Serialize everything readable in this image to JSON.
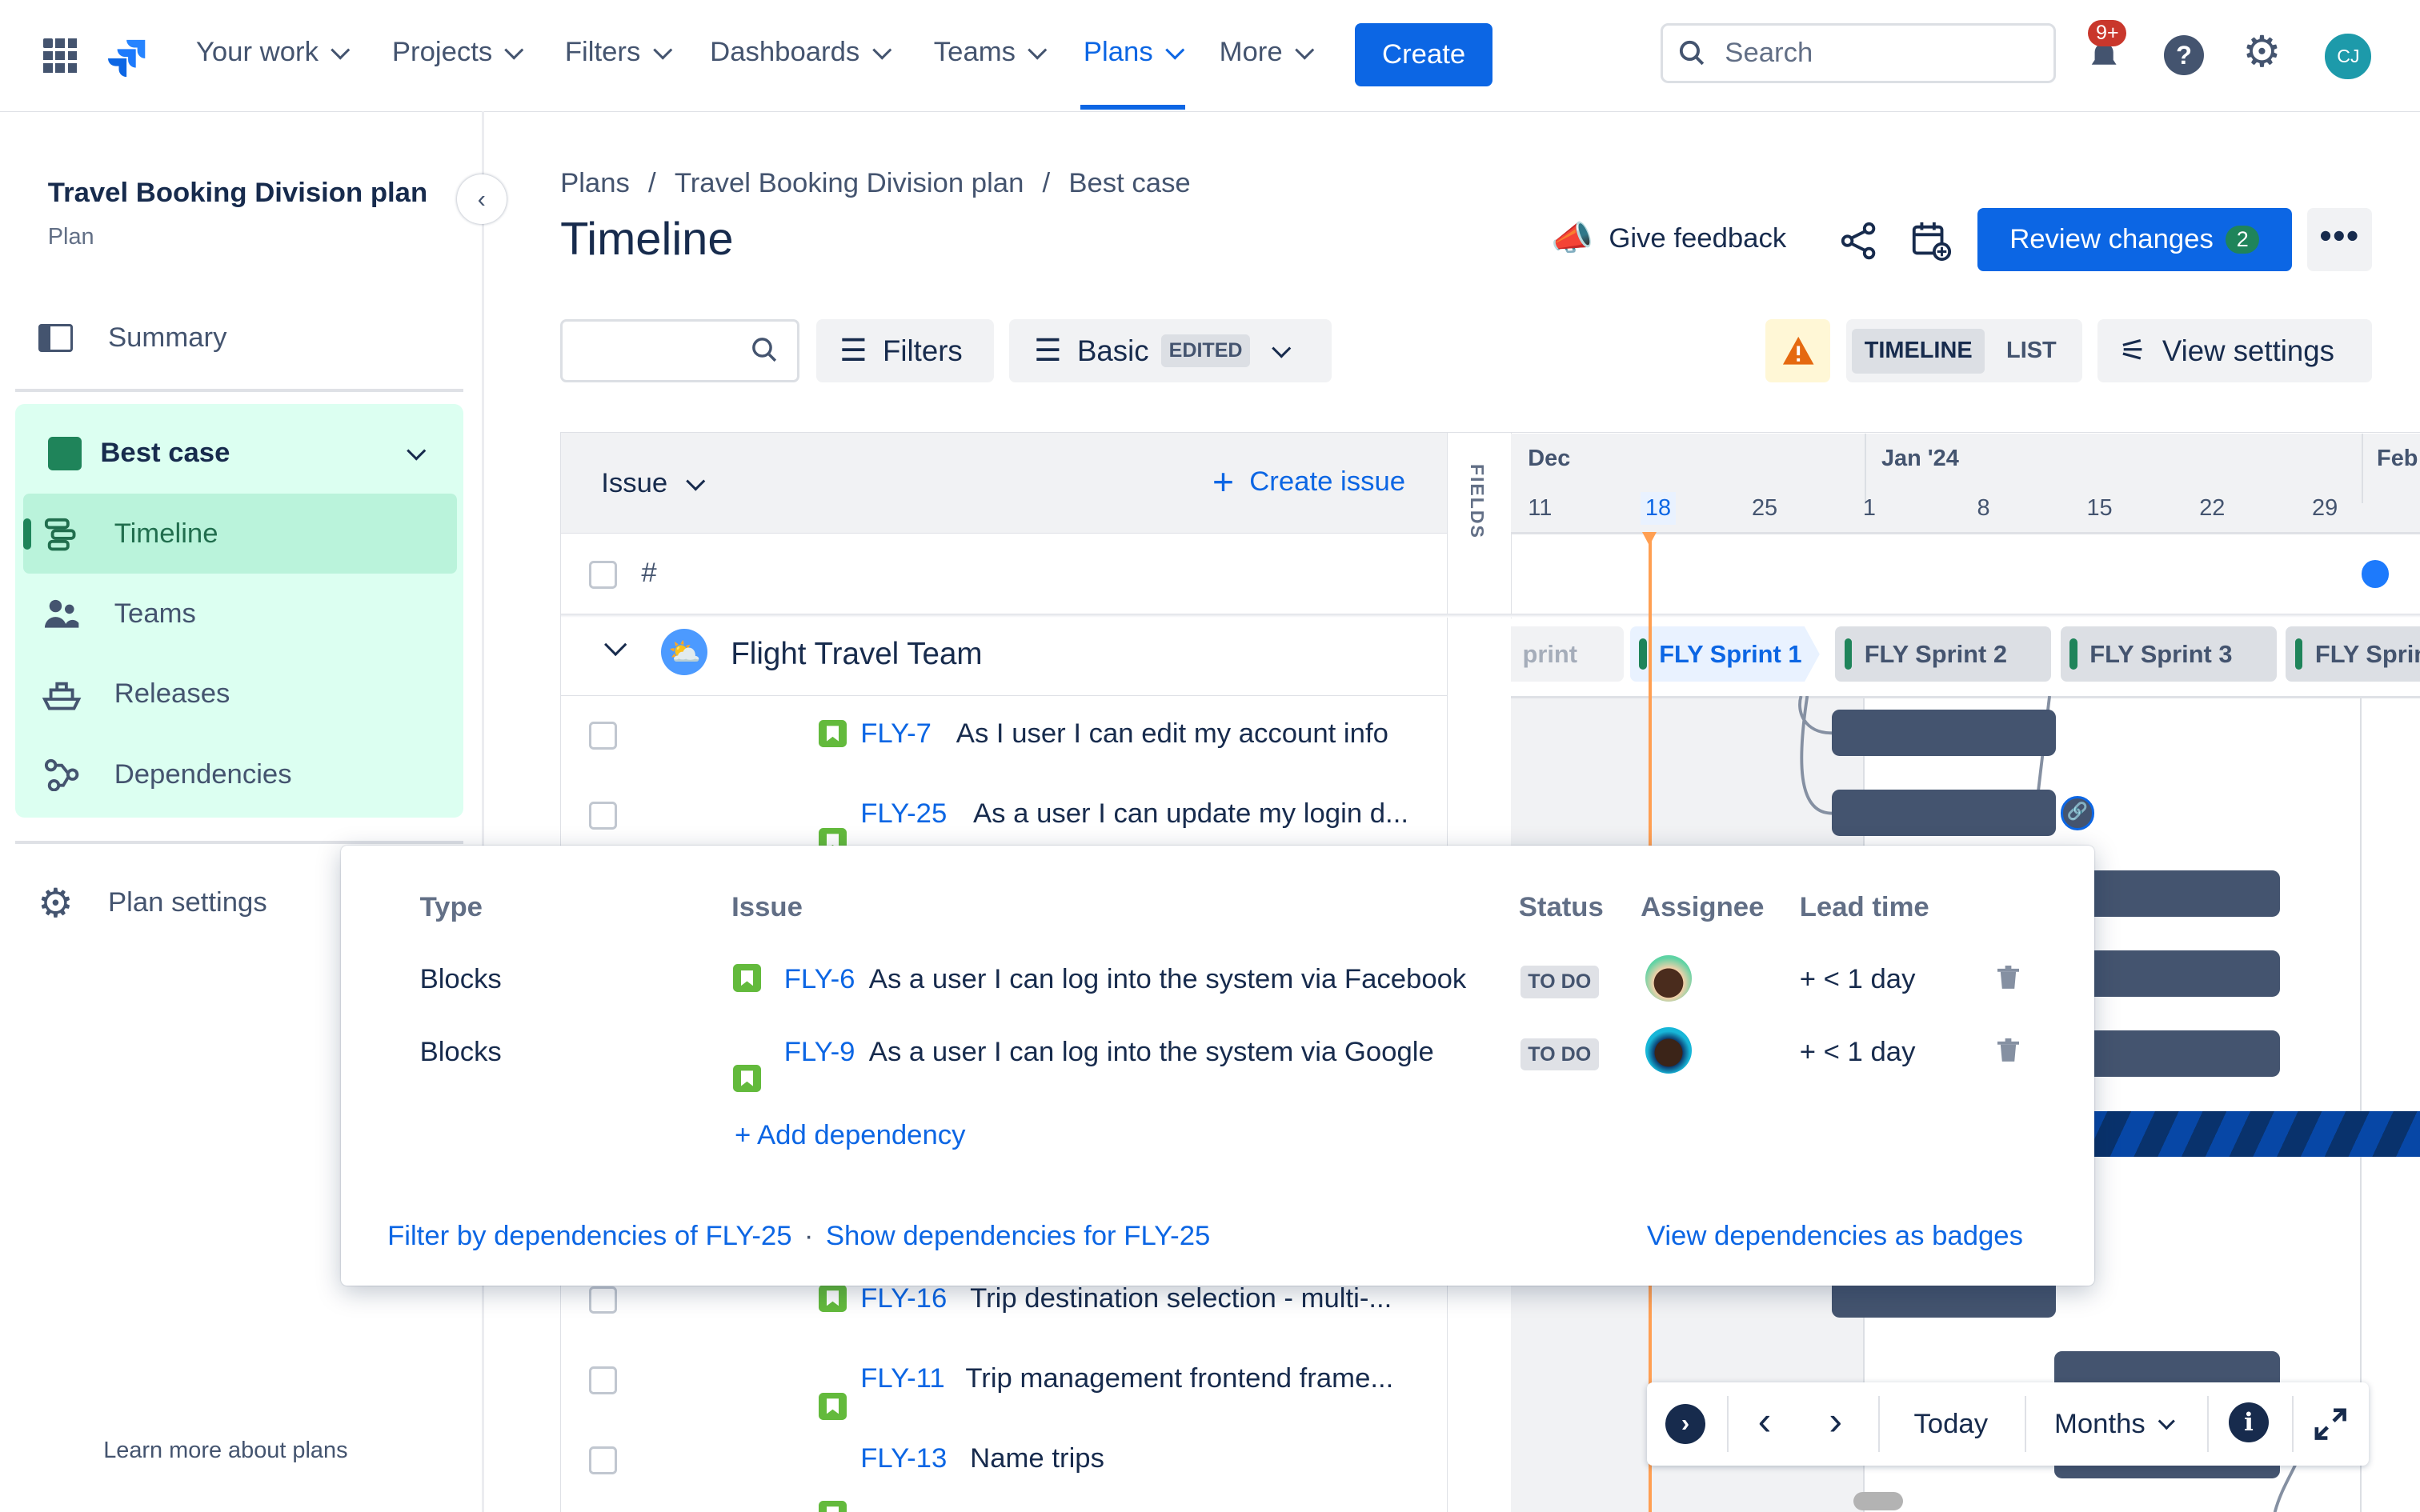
{
  "nav": {
    "items": [
      {
        "label": "Your work"
      },
      {
        "label": "Projects"
      },
      {
        "label": "Filters"
      },
      {
        "label": "Dashboards"
      },
      {
        "label": "Teams"
      },
      {
        "label": "Plans",
        "active": true
      },
      {
        "label": "More"
      }
    ],
    "create_label": "Create",
    "search_placeholder": "Search",
    "notification_count": "9+",
    "avatar_initials": "CJ",
    "accent": "#0c66e4"
  },
  "sidebar": {
    "plan_title": "Travel Booking Division plan",
    "plan_subtitle": "Plan",
    "summary": "Summary",
    "scenario": "Best case",
    "scenario_color": "#1f845a",
    "items": [
      {
        "label": "Timeline",
        "icon": "timeline-icon",
        "active": true
      },
      {
        "label": "Teams",
        "icon": "people-icon"
      },
      {
        "label": "Releases",
        "icon": "ship-icon"
      },
      {
        "label": "Dependencies",
        "icon": "dependencies-icon"
      }
    ],
    "plan_settings": "Plan settings",
    "learn_more": "Learn more about plans"
  },
  "header": {
    "breadcrumb": [
      "Plans",
      "Travel Booking Division plan",
      "Best case"
    ],
    "title": "Timeline",
    "give_feedback": "Give feedback",
    "review_changes": "Review changes",
    "review_count": "2"
  },
  "toolbar": {
    "search_value": "",
    "filters": "Filters",
    "view": "Basic",
    "view_badge": "EDITED",
    "timeline_tab": "TIMELINE",
    "list_tab": "LIST",
    "view_settings": "View settings"
  },
  "table": {
    "issue_header": "Issue",
    "create_issue": "Create issue",
    "hash": "#",
    "fields_label": "FIELDS",
    "team": "Flight Travel Team",
    "rows_top": [
      {
        "key": "FLY-7",
        "summary": "As I user I can edit my account info"
      },
      {
        "key": "FLY-25",
        "summary": "As a user I can update my login d..."
      }
    ],
    "rows_bottom": [
      {
        "key": "FLY-16",
        "summary": "Trip destination selection - multi-..."
      },
      {
        "key": "FLY-11",
        "summary": "Trip management frontend frame..."
      },
      {
        "key": "FLY-13",
        "summary": "Name trips"
      }
    ]
  },
  "timeline": {
    "months": [
      "Dec",
      "Jan '24",
      "Feb"
    ],
    "weeks": [
      "11",
      "18",
      "25",
      "1",
      "8",
      "15",
      "22",
      "29"
    ],
    "today": "18",
    "sprints": [
      "print",
      "FLY Sprint 1",
      "FLY Sprint 2",
      "FLY Sprint 3",
      "FLY Sprin"
    ],
    "today_color": "#ff9f52",
    "bar_color": "#44546f"
  },
  "popover": {
    "headers": {
      "type": "Type",
      "issue": "Issue",
      "status": "Status",
      "assignee": "Assignee",
      "lead_time": "Lead time"
    },
    "rows": [
      {
        "type": "Blocks",
        "key": "FLY-6",
        "summary": "As a user I can log into the system via Facebook",
        "status": "TO DO",
        "lead_time": "+ < 1 day"
      },
      {
        "type": "Blocks",
        "key": "FLY-9",
        "summary": "As a user I can log into the system via Google",
        "status": "TO DO",
        "lead_time": "+ < 1 day"
      }
    ],
    "add_dependency": "+ Add dependency",
    "filter_link": "Filter by dependencies of FLY-25",
    "separator": "·",
    "show_link": "Show dependencies for FLY-25",
    "badges_link": "View dependencies as badges"
  },
  "controls": {
    "today": "Today",
    "scale": "Months"
  }
}
